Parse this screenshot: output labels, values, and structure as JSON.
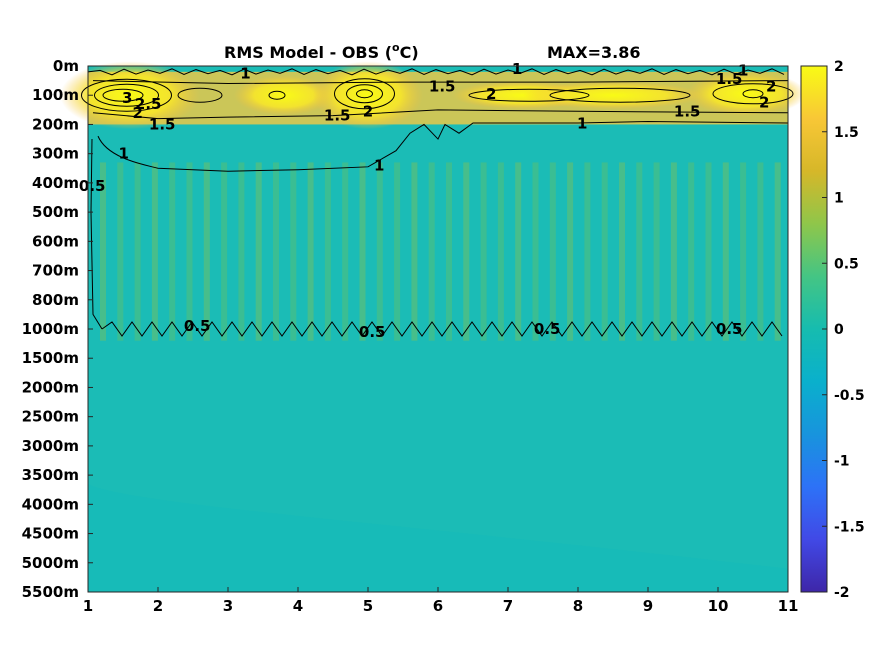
{
  "chart_data": {
    "type": "heatmap",
    "title": "RMS Model - OBS (",
    "title_unit": "o",
    "title_unit_suffix": "C)",
    "max_label": "MAX=3.86",
    "x_ticks": [
      "1",
      "2",
      "3",
      "4",
      "5",
      "6",
      "7",
      "8",
      "9",
      "10",
      "11"
    ],
    "xlim": [
      1,
      11
    ],
    "y_ticks": [
      "0m",
      "100m",
      "200m",
      "300m",
      "400m",
      "500m",
      "600m",
      "700m",
      "800m",
      "1000m",
      "1500m",
      "2000m",
      "2500m",
      "3000m",
      "3500m",
      "4000m",
      "4500m",
      "5000m",
      "5500m"
    ],
    "colorbar": {
      "ticks": [
        "2",
        "1.5",
        "1",
        "0.5",
        "0",
        "-0.5",
        "-1",
        "-1.5",
        "-2"
      ],
      "range": [
        -2,
        2
      ],
      "colormap": "parula"
    },
    "contour_levels": [
      0.5,
      1,
      1.5,
      2,
      2.5,
      3
    ],
    "contour_labels": [
      {
        "text": "1",
        "x": 3.25,
        "depth_index": 0.25
      },
      {
        "text": "1",
        "x": 7.13,
        "depth_index": 0.1
      },
      {
        "text": "1.5",
        "x": 10.16,
        "depth_index": 0.45
      },
      {
        "text": "1",
        "x": 10.36,
        "depth_index": 0.15
      },
      {
        "text": "2",
        "x": 10.76,
        "depth_index": 0.7
      },
      {
        "text": "2",
        "x": 10.66,
        "depth_index": 1.25
      },
      {
        "text": "1.5",
        "x": 6.06,
        "depth_index": 0.7
      },
      {
        "text": "2",
        "x": 6.76,
        "depth_index": 0.95
      },
      {
        "text": "3",
        "x": 1.56,
        "depth_index": 1.1
      },
      {
        "text": "2.5",
        "x": 1.86,
        "depth_index": 1.3
      },
      {
        "text": "2",
        "x": 1.71,
        "depth_index": 1.6
      },
      {
        "text": "1.5",
        "x": 2.06,
        "depth_index": 2.0
      },
      {
        "text": "1.5",
        "x": 4.56,
        "depth_index": 1.7
      },
      {
        "text": "2",
        "x": 5.0,
        "depth_index": 1.55
      },
      {
        "text": "1.5",
        "x": 9.56,
        "depth_index": 1.55
      },
      {
        "text": "1",
        "x": 8.06,
        "depth_index": 1.97
      },
      {
        "text": "1",
        "x": 1.51,
        "depth_index": 3.0
      },
      {
        "text": "1",
        "x": 5.16,
        "depth_index": 3.4
      },
      {
        "text": "0.5",
        "x": 1.06,
        "depth_index": 4.1
      },
      {
        "text": "0.5",
        "x": 2.56,
        "depth_index": 8.9
      },
      {
        "text": "0.5",
        "x": 5.06,
        "depth_index": 9.1
      },
      {
        "text": "0.5",
        "x": 7.56,
        "depth_index": 9.0
      },
      {
        "text": "0.5",
        "x": 10.16,
        "depth_index": 9.0
      }
    ]
  }
}
